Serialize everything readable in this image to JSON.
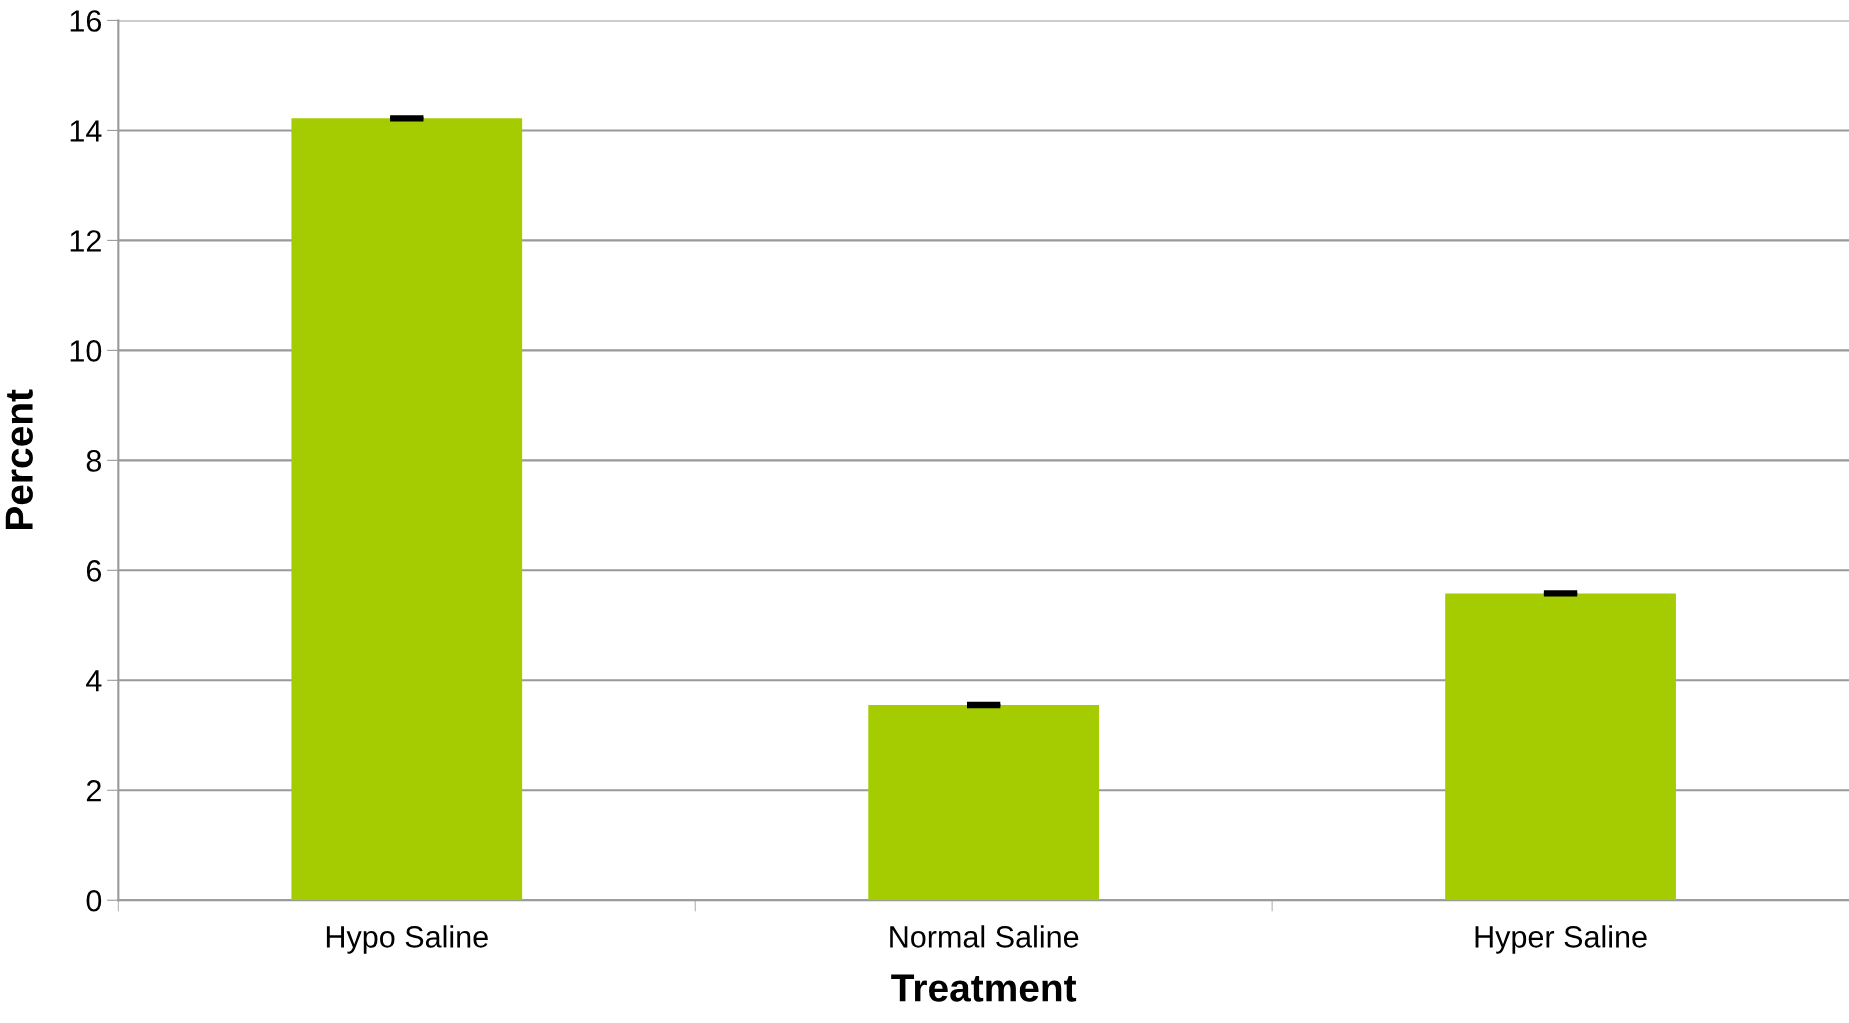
{
  "chart_data": {
    "type": "bar",
    "xlabel": "Treatment",
    "ylabel": "Percent",
    "categories": [
      "Hypo Saline",
      "Normal Saline",
      "Hyper Saline"
    ],
    "values": [
      14.22,
      3.55,
      5.58
    ],
    "errors": [
      0.02,
      0.02,
      0.02
    ],
    "color": "#a4cc00",
    "ylim": [
      0,
      16
    ],
    "yticks": [
      0,
      2,
      4,
      6,
      8,
      10,
      12,
      14,
      16
    ],
    "grid": "y",
    "legend": false
  }
}
